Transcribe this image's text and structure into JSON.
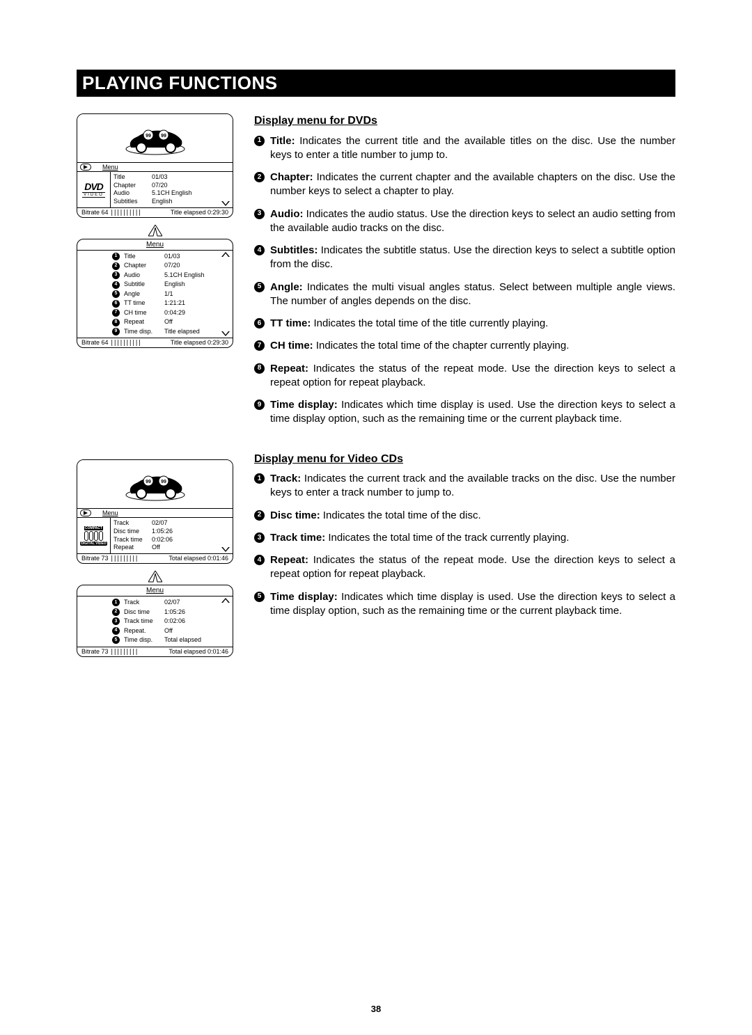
{
  "page": {
    "title": "PLAYING FUNCTIONS",
    "number": "38"
  },
  "dvd_section": {
    "heading": "Display menu for DVDs",
    "items": [
      {
        "n": "1",
        "label": "Title:",
        "text": "Indicates the current title and the available titles on the disc. Use the number keys to enter a title number to jump to."
      },
      {
        "n": "2",
        "label": "Chapter:",
        "text": "Indicates the current chapter and the available chapters on the disc. Use the number keys to select a chapter to play."
      },
      {
        "n": "3",
        "label": "Audio:",
        "text": "Indicates the audio status. Use the direction keys to select an audio setting from the available audio tracks on the disc."
      },
      {
        "n": "4",
        "label": "Subtitles:",
        "text": "Indicates the subtitle status. Use the direction keys to select a subtitle option from the disc."
      },
      {
        "n": "5",
        "label": "Angle:",
        "text": "Indicates the multi visual angles status. Select between multiple angle views. The number of angles depends on the disc."
      },
      {
        "n": "6",
        "label": "TT time:",
        "text": "Indicates the total time of the title currently playing."
      },
      {
        "n": "7",
        "label": "CH time:",
        "text": "Indicates the total time of the chapter currently playing."
      },
      {
        "n": "8",
        "label": "Repeat:",
        "text": "Indicates the status of the repeat mode. Use the direction keys to select a repeat option for repeat playback."
      },
      {
        "n": "9",
        "label": "Time display:",
        "text": "Indicates which time display is used. Use the direction keys to select a time display option, such as  the remaining time or the current playback time."
      }
    ]
  },
  "vcd_section": {
    "heading": "Display menu for Video CDs",
    "items": [
      {
        "n": "1",
        "label": "Track:",
        "text": "Indicates the current track and the available tracks on the disc. Use the number keys to enter a track number to jump to."
      },
      {
        "n": "2",
        "label": "Disc time:",
        "text": "Indicates the total time of the disc."
      },
      {
        "n": "3",
        "label": "Track time:",
        "text": "Indicates the total time of the track currently playing."
      },
      {
        "n": "4",
        "label": "Repeat:",
        "text": "Indicates the status of the repeat mode. Use the direction keys to select a repeat option for repeat playback."
      },
      {
        "n": "5",
        "label": "Time display:",
        "text": "Indicates which time display is used. Use the direction keys to select a time display option, such as  the remaining time or the current playback time."
      }
    ]
  },
  "dvd_diagram1": {
    "menu_word": "Menu",
    "logo_top": "DVD",
    "logo_bottom": "VIDEO",
    "rows": [
      {
        "k": "Title",
        "v": "01/03"
      },
      {
        "k": "Chapter",
        "v": "07/20"
      },
      {
        "k": "Audio",
        "v": "5.1CH English"
      },
      {
        "k": "Subtitles",
        "v": "English"
      }
    ],
    "bitrate": "Bitrate  64",
    "elapsed": "Title elapsed 0:29:30"
  },
  "dvd_diagram2": {
    "menu_word": "Menu",
    "rows": [
      {
        "n": "1",
        "k": "Title",
        "v": "01/03"
      },
      {
        "n": "2",
        "k": "Chapter",
        "v": "07/20"
      },
      {
        "n": "3",
        "k": "Audio",
        "v": "5.1CH English"
      },
      {
        "n": "4",
        "k": "Subtitle",
        "v": "English"
      },
      {
        "n": "5",
        "k": "Angle",
        "v": "1/1"
      },
      {
        "n": "6",
        "k": "TT time",
        "v": "1:21:21"
      },
      {
        "n": "7",
        "k": "CH time",
        "v": "0:04:29"
      },
      {
        "n": "8",
        "k": "Repeat",
        "v": "Off"
      },
      {
        "n": "9",
        "k": "Time disp.",
        "v": "Title elapsed"
      }
    ],
    "bitrate": "Bitrate  64",
    "elapsed": "Title elapsed 0:29:30"
  },
  "vcd_diagram1": {
    "menu_word": "Menu",
    "logo_top": "COMPACT",
    "logo_bottom": "DIGITAL VIDEO",
    "rows": [
      {
        "k": "Track",
        "v": "02/07"
      },
      {
        "k": "Disc time",
        "v": "1:05:26"
      },
      {
        "k": "Track time",
        "v": "0:02:06"
      },
      {
        "k": "Repeat",
        "v": "Off"
      }
    ],
    "bitrate": "Bitrate 73",
    "elapsed": "Total elapsed 0:01:46"
  },
  "vcd_diagram2": {
    "menu_word": "Menu",
    "rows": [
      {
        "n": "1",
        "k": "Track",
        "v": "02/07"
      },
      {
        "n": "2",
        "k": "Disc time",
        "v": "1:05:26"
      },
      {
        "n": "3",
        "k": "Track time",
        "v": "0:02:06"
      },
      {
        "n": "4",
        "k": "Repeat.",
        "v": "Off"
      },
      {
        "n": "5",
        "k": "Time disp.",
        "v": "Total elapsed"
      }
    ],
    "bitrate": "Bitrate 73",
    "elapsed": "Total elapsed 0:01:46"
  }
}
